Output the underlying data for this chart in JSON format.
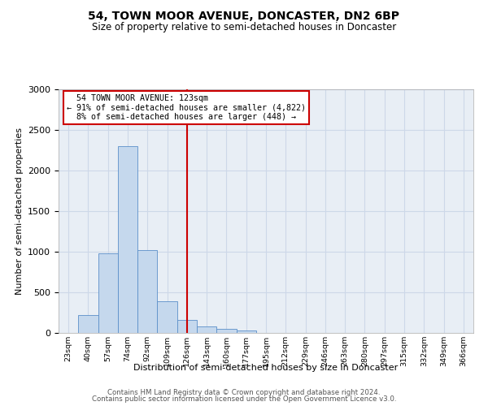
{
  "title1": "54, TOWN MOOR AVENUE, DONCASTER, DN2 6BP",
  "title2": "Size of property relative to semi-detached houses in Doncaster",
  "xlabel": "Distribution of semi-detached houses by size in Doncaster",
  "ylabel": "Number of semi-detached properties",
  "property_label": "54 TOWN MOOR AVENUE: 123sqm",
  "pct_smaller": 91,
  "n_smaller": 4822,
  "pct_larger": 8,
  "n_larger": 448,
  "bin_labels": [
    "23sqm",
    "40sqm",
    "57sqm",
    "74sqm",
    "92sqm",
    "109sqm",
    "126sqm",
    "143sqm",
    "160sqm",
    "177sqm",
    "195sqm",
    "212sqm",
    "229sqm",
    "246sqm",
    "263sqm",
    "280sqm",
    "297sqm",
    "315sqm",
    "332sqm",
    "349sqm",
    "366sqm"
  ],
  "bar_values": [
    5,
    220,
    980,
    2300,
    1020,
    390,
    165,
    85,
    55,
    30,
    5,
    2,
    1,
    0,
    0,
    0,
    0,
    0,
    0,
    0,
    0
  ],
  "bar_color": "#c5d8ed",
  "bar_edge_color": "#5b8fc9",
  "vline_color": "#cc0000",
  "vline_idx": 6,
  "annotation_box_color": "#cc0000",
  "grid_color": "#cdd8e8",
  "background_color": "#e8eef5",
  "ylim": [
    0,
    3000
  ],
  "yticks": [
    0,
    500,
    1000,
    1500,
    2000,
    2500,
    3000
  ],
  "footer1": "Contains HM Land Registry data © Crown copyright and database right 2024.",
  "footer2": "Contains public sector information licensed under the Open Government Licence v3.0."
}
